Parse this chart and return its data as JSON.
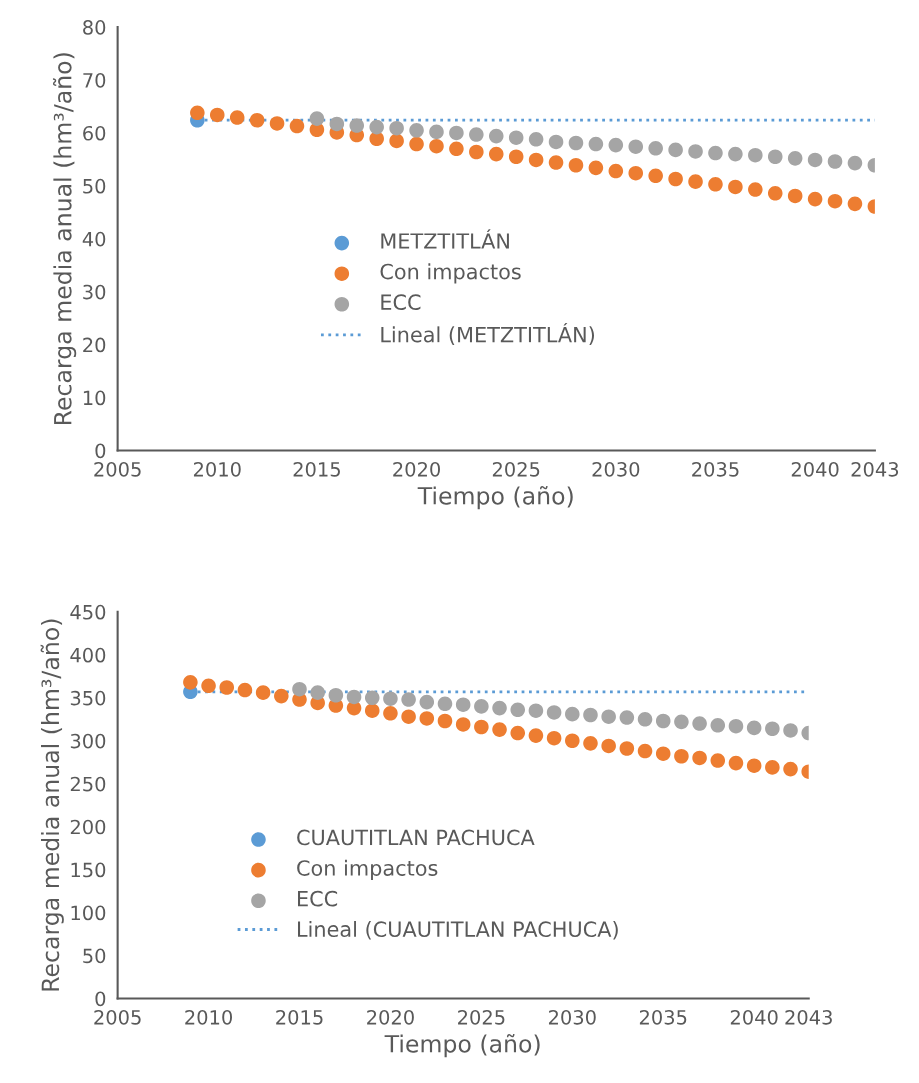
{
  "chart_data": [
    {
      "type": "scatter",
      "xlabel": "Tiempo (año)",
      "ylabel": "Recarga media anual (hm³/año)",
      "xlim": [
        2005,
        2043
      ],
      "xticks": [
        2005,
        2010,
        2015,
        2020,
        2025,
        2030,
        2035,
        2040,
        2043
      ],
      "ylim": [
        0,
        80
      ],
      "yticks": [
        0,
        10,
        20,
        30,
        40,
        50,
        60,
        70,
        80
      ],
      "grid": false,
      "legend": "center",
      "marker": "circle",
      "series": [
        {
          "name": "METZTITLÁN",
          "color": "#5b9bd5",
          "x": [
            2009
          ],
          "values": [
            62.4
          ]
        },
        {
          "name": "Con impactos",
          "color": "#ed7d31",
          "x": [
            2009,
            2010,
            2011,
            2012,
            2013,
            2014,
            2015,
            2016,
            2017,
            2018,
            2019,
            2020,
            2021,
            2022,
            2023,
            2024,
            2025,
            2026,
            2027,
            2028,
            2029,
            2030,
            2031,
            2032,
            2033,
            2034,
            2035,
            2036,
            2037,
            2038,
            2039,
            2040,
            2041,
            2042,
            2043
          ],
          "values": [
            63.8,
            63.4,
            62.9,
            62.4,
            61.8,
            61.3,
            60.6,
            60.1,
            59.6,
            58.9,
            58.5,
            57.9,
            57.5,
            57.0,
            56.4,
            56.0,
            55.5,
            54.9,
            54.4,
            53.9,
            53.4,
            52.8,
            52.4,
            51.9,
            51.3,
            50.8,
            50.3,
            49.8,
            49.3,
            48.6,
            48.1,
            47.5,
            47.1,
            46.6,
            46.1
          ]
        },
        {
          "name": "ECC",
          "color": "#a5a5a5",
          "x": [
            2015,
            2016,
            2017,
            2018,
            2019,
            2020,
            2021,
            2022,
            2023,
            2024,
            2025,
            2026,
            2027,
            2028,
            2029,
            2030,
            2031,
            2032,
            2033,
            2034,
            2035,
            2036,
            2037,
            2038,
            2039,
            2040,
            2041,
            2042,
            2043
          ],
          "values": [
            62.7,
            61.7,
            61.4,
            61.1,
            60.9,
            60.5,
            60.2,
            60.0,
            59.7,
            59.4,
            59.1,
            58.8,
            58.3,
            58.1,
            57.9,
            57.7,
            57.4,
            57.1,
            56.8,
            56.5,
            56.2,
            56.0,
            55.8,
            55.5,
            55.2,
            54.9,
            54.6,
            54.3,
            53.9
          ]
        },
        {
          "name": "Lineal (METZTITLÁN)",
          "type": "line",
          "line_style": "dotted",
          "marker": "none",
          "color": "#5b9bd5",
          "x": [
            2009,
            2043
          ],
          "values": [
            62.4,
            62.4
          ]
        }
      ]
    },
    {
      "type": "scatter",
      "xlabel": "Tiempo (año)",
      "ylabel": "Recarga media anual (hm³/año)",
      "xlim": [
        2005,
        2043
      ],
      "xticks": [
        2005,
        2010,
        2015,
        2020,
        2025,
        2030,
        2035,
        2040,
        2043
      ],
      "ylim": [
        0,
        450
      ],
      "yticks": [
        0,
        50,
        100,
        150,
        200,
        250,
        300,
        350,
        400,
        450
      ],
      "grid": false,
      "legend": "bottom",
      "marker": "circle",
      "series": [
        {
          "name": "CUAUTITLAN PACHUCA",
          "color": "#5b9bd5",
          "x": [
            2009
          ],
          "values": [
            357
          ]
        },
        {
          "name": "Con impactos",
          "color": "#ed7d31",
          "x": [
            2009,
            2010,
            2011,
            2012,
            2013,
            2014,
            2015,
            2016,
            2017,
            2018,
            2019,
            2020,
            2021,
            2022,
            2023,
            2024,
            2025,
            2026,
            2027,
            2028,
            2029,
            2030,
            2031,
            2032,
            2033,
            2034,
            2035,
            2036,
            2037,
            2038,
            2039,
            2040,
            2041,
            2042,
            2043
          ],
          "values": [
            368,
            364,
            362,
            359,
            356,
            352,
            348,
            344,
            341,
            338,
            335,
            332,
            328,
            326,
            323,
            319,
            316,
            313,
            309,
            306,
            303,
            300,
            297,
            294,
            291,
            288,
            285,
            282,
            280,
            277,
            274,
            271,
            269,
            267,
            264
          ]
        },
        {
          "name": "ECC",
          "color": "#a5a5a5",
          "x": [
            2015,
            2016,
            2017,
            2018,
            2019,
            2020,
            2021,
            2022,
            2023,
            2024,
            2025,
            2026,
            2027,
            2028,
            2029,
            2030,
            2031,
            2032,
            2033,
            2034,
            2035,
            2036,
            2037,
            2038,
            2039,
            2040,
            2041,
            2042,
            2043
          ],
          "values": [
            360,
            356,
            353,
            351,
            350,
            349,
            348,
            345,
            343,
            342,
            340,
            338,
            336,
            335,
            333,
            331,
            330,
            328,
            327,
            325,
            323,
            322,
            320,
            318,
            317,
            315,
            314,
            312,
            309
          ]
        },
        {
          "name": "Lineal (CUAUTITLAN PACHUCA)",
          "type": "line",
          "line_style": "dotted",
          "marker": "none",
          "color": "#5b9bd5",
          "x": [
            2009,
            2043
          ],
          "values": [
            357,
            357
          ]
        }
      ]
    }
  ]
}
